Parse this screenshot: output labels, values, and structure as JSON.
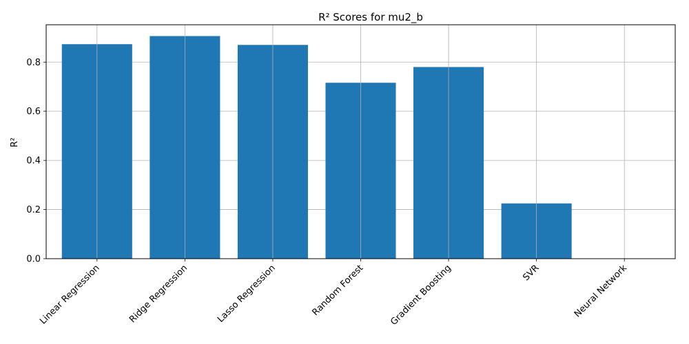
{
  "chart_data": {
    "type": "bar",
    "title": "R² Scores for mu2_b",
    "xlabel": "",
    "ylabel": "R²",
    "categories": [
      "Linear Regression",
      "Ridge Regression",
      "Lasso Regression",
      "Random Forest",
      "Gradient Boosting",
      "SVR",
      "Neural Network"
    ],
    "values": [
      0.873,
      0.906,
      0.87,
      0.716,
      0.78,
      0.225,
      0.0
    ],
    "ylim": [
      0,
      0.952
    ],
    "yticks": [
      "0.0",
      "0.2",
      "0.4",
      "0.6",
      "0.8"
    ],
    "grid": true,
    "bar_color": "#1f77b4",
    "grid_color": "#b0b0b0"
  }
}
